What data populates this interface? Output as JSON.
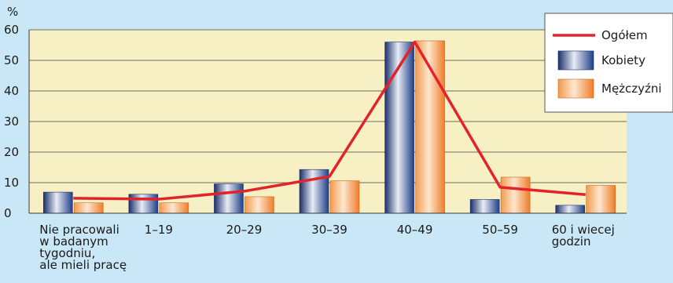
{
  "chart_data": {
    "type": "bar",
    "ylabel": "%",
    "ylim": [
      0,
      60
    ],
    "yticks": [
      "0",
      "10",
      "20",
      "30",
      "40",
      "50",
      "60"
    ],
    "categories": [
      [
        "Nie pracowali",
        "w badanym",
        "tygodniu,",
        "ale mieli pracę"
      ],
      [
        "1–19"
      ],
      [
        "20–29"
      ],
      [
        "30–39"
      ],
      [
        "40–49"
      ],
      [
        "50–59"
      ],
      [
        "60 i wiecej",
        "godzin"
      ]
    ],
    "series": [
      {
        "name": "Ogółem",
        "kind": "line",
        "color": "#e3232a",
        "values": [
          4.9,
          4.6,
          7.2,
          12.0,
          56.0,
          8.5,
          6.1
        ]
      },
      {
        "name": "Kobiety",
        "kind": "bar",
        "color": "#1f3f87",
        "values": [
          6.9,
          6.2,
          9.6,
          14.3,
          56.0,
          4.5,
          2.6
        ]
      },
      {
        "name": "Mężczyźni",
        "kind": "bar",
        "color": "#f39a4e",
        "values": [
          3.4,
          3.4,
          5.4,
          10.6,
          56.4,
          11.8,
          9.1
        ]
      }
    ],
    "grid": true,
    "legend_position": "top-right",
    "colors": {
      "background": "#c9e7f6",
      "plot_area": "#f7f0c5",
      "axis": "#3a3a3a"
    }
  }
}
